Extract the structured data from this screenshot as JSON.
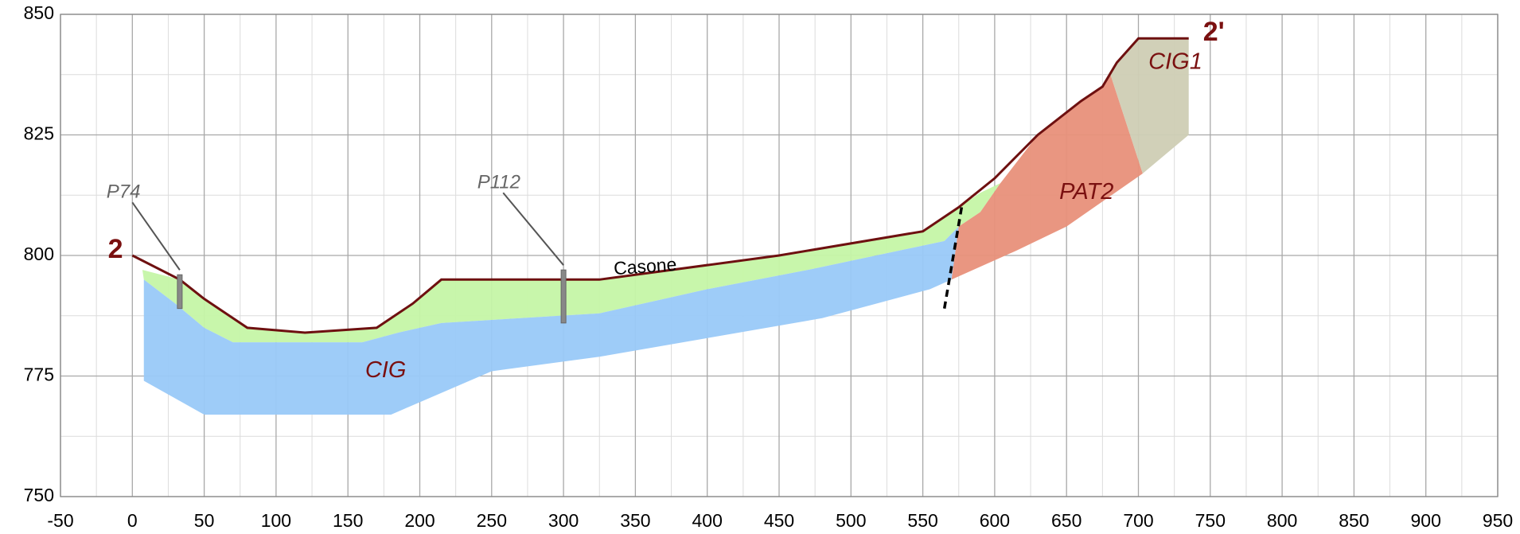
{
  "chart_data": {
    "type": "cross-section",
    "xlim": [
      -50,
      950
    ],
    "xticks": [
      -50,
      0,
      50,
      100,
      150,
      200,
      250,
      300,
      350,
      400,
      450,
      500,
      550,
      600,
      650,
      700,
      750,
      800,
      850,
      900,
      950
    ],
    "ylim": [
      750,
      850
    ],
    "yticks": [
      750,
      775,
      800,
      825,
      850
    ],
    "grid": true,
    "series": [
      {
        "kind": "area",
        "color": "#c5f5a6",
        "x": [
          7,
          33,
          50,
          80,
          120,
          170,
          195,
          215,
          325,
          450,
          550,
          575,
          590,
          604,
          590,
          575,
          565,
          470,
          400,
          325,
          215,
          185,
          160,
          70,
          50,
          30,
          8
        ],
        "values": [
          797,
          795,
          791,
          785,
          784,
          785,
          790,
          795,
          795,
          800,
          805,
          810,
          813,
          815,
          809,
          806,
          803,
          797,
          793,
          788,
          786,
          784,
          782,
          782,
          785,
          790,
          795
        ]
      },
      {
        "kind": "area",
        "color": "#99c9f8",
        "name": "CIG",
        "x": [
          8,
          30,
          50,
          70,
          160,
          185,
          215,
          325,
          400,
          470,
          565,
          575,
          570,
          555,
          480,
          325,
          250,
          180,
          50,
          8
        ],
        "values": [
          795,
          790,
          785,
          782,
          782,
          784,
          786,
          788,
          793,
          797,
          803,
          806,
          795,
          793,
          787,
          779,
          776,
          767,
          767,
          774
        ]
      },
      {
        "kind": "area",
        "color": "#e8907a",
        "name": "PAT2",
        "x": [
          570,
          575,
          590,
          604,
          630,
          660,
          675,
          680,
          703,
          650,
          615
        ],
        "values": [
          795,
          806,
          809,
          815,
          825,
          832,
          835,
          838,
          817,
          806,
          801
        ]
      },
      {
        "kind": "area",
        "color": "#cfcdb4",
        "name": "CIG1",
        "x": [
          680,
          685,
          700,
          735,
          735,
          703
        ],
        "values": [
          838,
          840,
          845,
          845,
          825,
          817
        ]
      },
      {
        "kind": "line",
        "color": "#6e1010",
        "x": [
          0,
          33,
          50,
          80,
          120,
          170,
          195,
          215,
          325,
          450,
          550,
          575,
          600,
          630,
          660,
          675,
          685,
          700,
          735
        ],
        "values": [
          800,
          795,
          791,
          785,
          784,
          785,
          790,
          795,
          795,
          800,
          805,
          810,
          816,
          825,
          832,
          835,
          840,
          845,
          845
        ]
      },
      {
        "kind": "fault",
        "color": "#000",
        "x": [
          565,
          577
        ],
        "values": [
          789,
          810
        ]
      }
    ],
    "boreholes": [
      {
        "name": "P74",
        "x": 33,
        "values": [
          789,
          796
        ]
      },
      {
        "name": "P112",
        "x": 300,
        "values": [
          786,
          797
        ]
      }
    ],
    "annotations": [
      "Casone",
      "2",
      "2'"
    ]
  }
}
